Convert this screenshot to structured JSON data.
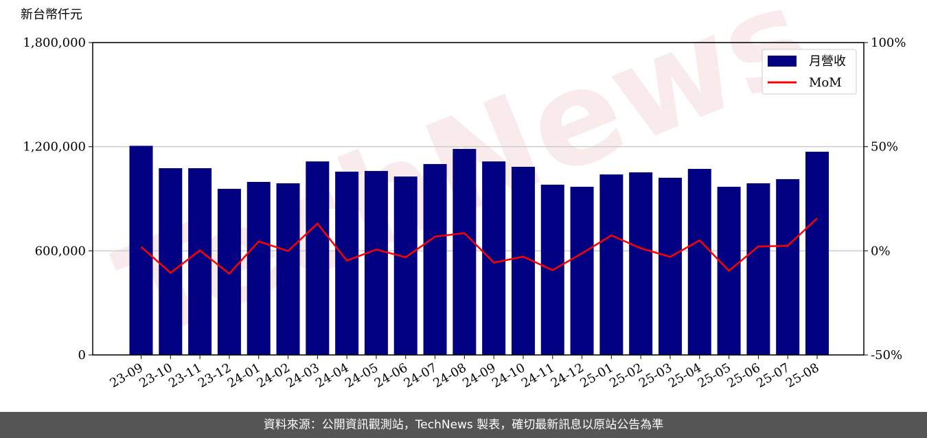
{
  "chart_data": {
    "type": "bar-line",
    "y_unit_label": "新台幣仟元",
    "watermark": "TechNews",
    "categories": [
      "23-09",
      "23-10",
      "23-11",
      "23-12",
      "24-01",
      "24-02",
      "24-03",
      "24-04",
      "24-05",
      "24-06",
      "24-07",
      "24-08",
      "24-09",
      "24-10",
      "24-11",
      "24-12",
      "25-01",
      "25-02",
      "25-03",
      "25-04",
      "25-05",
      "25-06",
      "25-07",
      "25-08"
    ],
    "series": [
      {
        "name": "月營收",
        "color": "#000080",
        "type": "bar",
        "values": [
          1205000,
          1076000,
          1076000,
          957000,
          997000,
          989000,
          1115000,
          1056000,
          1060000,
          1028000,
          1100000,
          1187000,
          1115000,
          1084000,
          981000,
          969000,
          1040000,
          1052000,
          1021000,
          1072000,
          969000,
          989000,
          1013000,
          1171000
        ]
      },
      {
        "name": "MoM",
        "color": "#ff0000",
        "type": "line",
        "axis": "y2",
        "values": [
          1.9,
          -10.6,
          0.2,
          -11.0,
          4.5,
          -0.1,
          13.1,
          -4.7,
          0.6,
          -3.1,
          6.8,
          8.5,
          -5.7,
          -2.8,
          -9.3,
          -1.2,
          7.4,
          1.2,
          -2.9,
          5.0,
          -9.6,
          2.1,
          2.4,
          15.6
        ]
      }
    ],
    "ylim": [
      0,
      1800000
    ],
    "yticks": [
      0,
      {
        "value": 600000,
        "label": "600,000"
      },
      {
        "value": 1200000,
        "label": "1,200,000"
      },
      {
        "value": 1800000,
        "label": "1,800,000"
      }
    ],
    "y2lim": [
      -50,
      100
    ],
    "y2ticks": [
      {
        "value": -50,
        "label": "-50%"
      },
      {
        "value": 0,
        "label": "0%"
      },
      {
        "value": 50,
        "label": "50%"
      },
      {
        "value": 100,
        "label": "100%"
      }
    ],
    "grid": true,
    "legend": "upper right"
  },
  "footer": "資料來源：公開資訊觀測站，TechNews 製表，確切最新訊息以原站公告為準"
}
